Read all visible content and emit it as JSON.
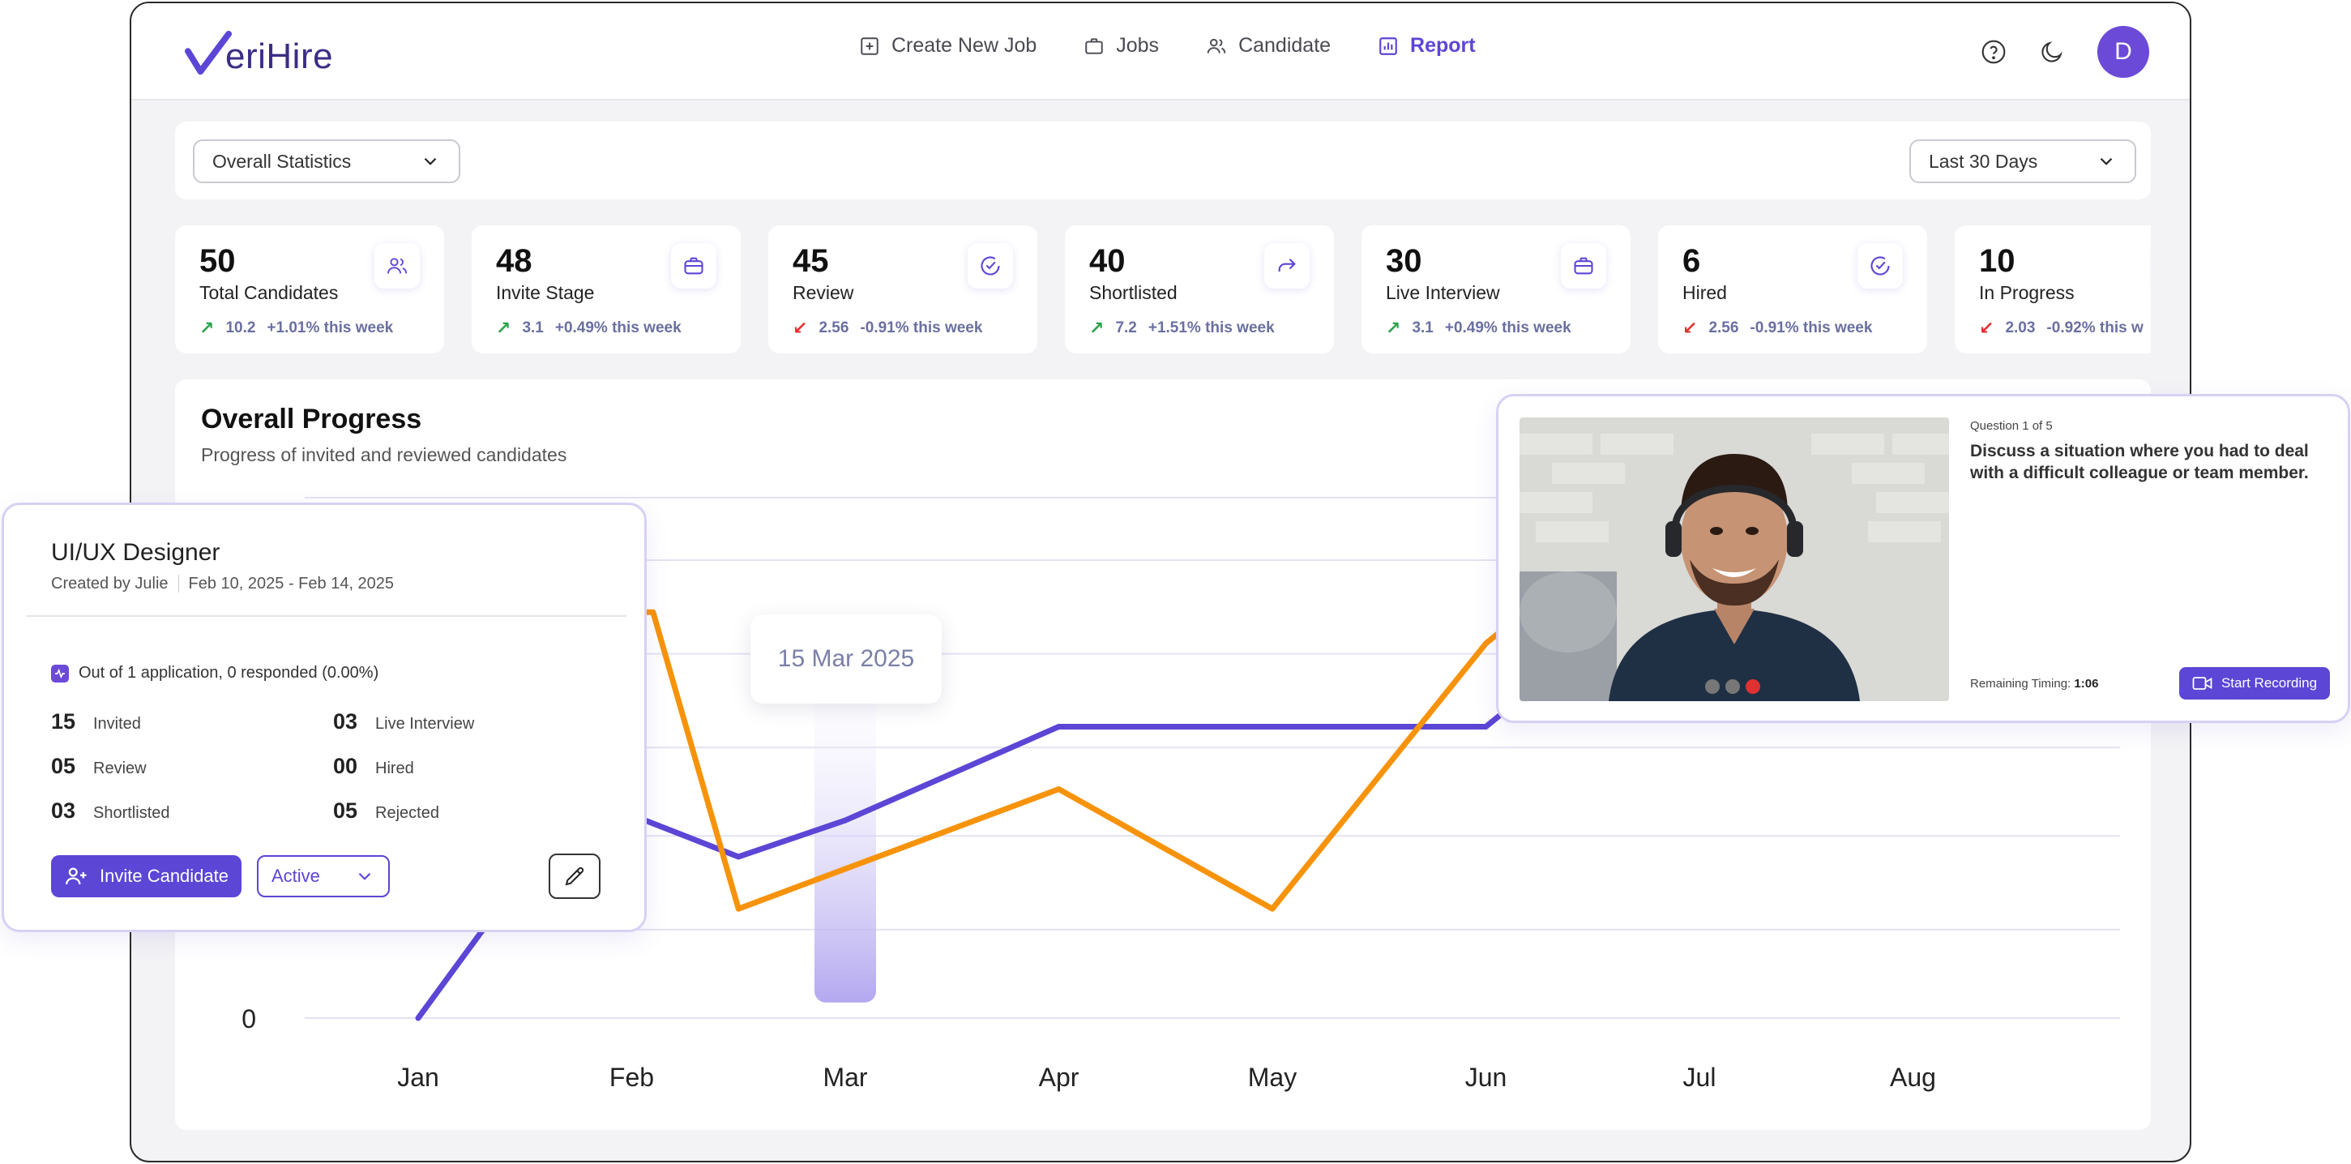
{
  "brand": {
    "logo_text": "eriHire",
    "accent": "#5b46d6",
    "logo_color": "#3b2d86"
  },
  "nav": {
    "items": [
      {
        "label": "Create New Job",
        "icon": "plus-square-icon"
      },
      {
        "label": "Jobs",
        "icon": "briefcase-icon"
      },
      {
        "label": "Candidate",
        "icon": "users-icon"
      },
      {
        "label": "Report",
        "icon": "bar-chart-icon",
        "active": true
      }
    ]
  },
  "user": {
    "initial": "D"
  },
  "filters": {
    "scope": "Overall Statistics",
    "range": "Last 30 Days"
  },
  "stats": [
    {
      "value": "50",
      "label": "Total Candidates",
      "delta": "10.2",
      "change": "+1.01% this week",
      "trend": "up",
      "icon": "users-icon"
    },
    {
      "value": "48",
      "label": "Invite Stage",
      "delta": "3.1",
      "change": "+0.49% this week",
      "trend": "up",
      "icon": "briefcase-icon"
    },
    {
      "value": "45",
      "label": "Review",
      "delta": "2.56",
      "change": "-0.91% this week",
      "trend": "down",
      "icon": "check-circle-icon"
    },
    {
      "value": "40",
      "label": "Shortlisted",
      "delta": "7.2",
      "change": "+1.51% this week",
      "trend": "up",
      "icon": "forward-icon"
    },
    {
      "value": "30",
      "label": "Live Interview",
      "delta": "3.1",
      "change": "+0.49% this week",
      "trend": "up",
      "icon": "briefcase-icon"
    },
    {
      "value": "6",
      "label": "Hired",
      "delta": "2.56",
      "change": "-0.91% this week",
      "trend": "down",
      "icon": "check-circle-icon"
    },
    {
      "value": "10",
      "label": "In Progress",
      "delta": "2.03",
      "change": "-0.92% this w",
      "trend": "down",
      "icon": "clock-icon"
    }
  ],
  "chart": {
    "title": "Overall Progress",
    "subtitle": "Progress of invited and reviewed candidates",
    "tooltip": "15 Mar 2025"
  },
  "chart_data": {
    "type": "line",
    "categories": [
      "Jan",
      "Feb",
      "Mar",
      "Apr",
      "May",
      "Jun",
      "Jul",
      "Aug"
    ],
    "y_tick_labels": [
      "0"
    ],
    "ylim": [
      0,
      100
    ],
    "highlight_category": "Mar",
    "series": [
      {
        "color": "#5b46d6",
        "points": [
          [
            0,
            0
          ],
          [
            0.5,
            28
          ],
          [
            1.0,
            39
          ],
          [
            1.5,
            31
          ],
          [
            2.0,
            38
          ],
          [
            3.0,
            56
          ],
          [
            5.0,
            56
          ],
          [
            5.3,
            66
          ]
        ]
      },
      {
        "color": "#f7930a",
        "points": [
          [
            1.0,
            78
          ],
          [
            1.1,
            78
          ],
          [
            1.5,
            21
          ],
          [
            3.0,
            44
          ],
          [
            4.0,
            21
          ],
          [
            5.0,
            72
          ],
          [
            5.3,
            82
          ]
        ]
      }
    ]
  },
  "job_card": {
    "title": "UI/UX Designer",
    "created_by": "Created by Julie",
    "dates": "Feb 10, 2025 - Feb 14, 2025",
    "summary": "Out of 1 application, 0 responded (0.00%)",
    "stats": [
      {
        "n": "15",
        "label": "Invited"
      },
      {
        "n": "03",
        "label": "Live Interview"
      },
      {
        "n": "05",
        "label": "Review"
      },
      {
        "n": "00",
        "label": "Hired"
      },
      {
        "n": "03",
        "label": "Shortlisted"
      },
      {
        "n": "05",
        "label": "Rejected"
      }
    ],
    "invite_label": "Invite Candidate",
    "status_value": "Active"
  },
  "interview": {
    "question_meta": "Question 1 of 5",
    "question": "Discuss a situation where you had to deal with a difficult colleague or team member.",
    "remaining_label": "Remaining Timing:",
    "remaining_value": "1:06",
    "record_label": "Start Recording"
  }
}
